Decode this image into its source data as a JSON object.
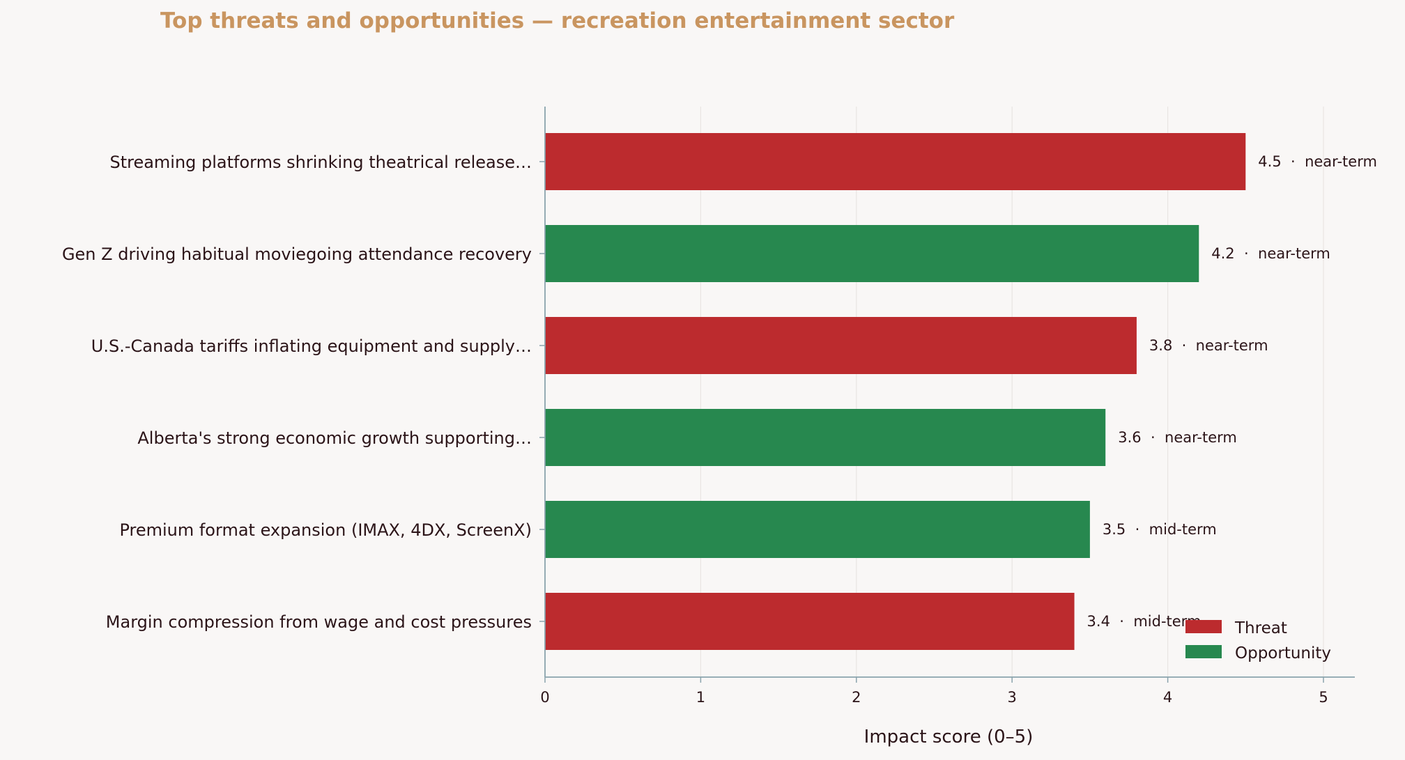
{
  "chart_data": {
    "type": "bar",
    "orientation": "horizontal",
    "title": "Top threats and opportunities — recreation entertainment sector",
    "xlabel": "Impact score (0–5)",
    "ylabel": "",
    "xlim": [
      0,
      5.2
    ],
    "xticks": [
      "0",
      "1",
      "2",
      "3",
      "4",
      "5"
    ],
    "grid": "vertical",
    "legend_position": "bottom-right",
    "categories": [
      "Streaming platforms shrinking theatrical release…",
      "Gen Z driving habitual moviegoing attendance recovery",
      "U.S.-Canada tariffs inflating equipment and supply…",
      "Alberta's strong economic growth supporting…",
      "Premium format expansion (IMAX, 4DX, ScreenX)",
      "Margin compression from wage and cost pressures"
    ],
    "values": [
      4.5,
      4.2,
      3.8,
      3.6,
      3.5,
      3.4
    ],
    "kinds": [
      "Threat",
      "Opportunity",
      "Threat",
      "Opportunity",
      "Opportunity",
      "Threat"
    ],
    "horizons": [
      "near-term",
      "near-term",
      "near-term",
      "near-term",
      "mid-term",
      "mid-term"
    ],
    "value_labels": [
      "4.5  ·  near-term",
      "4.2  ·  near-term",
      "3.8  ·  near-term",
      "3.6  ·  near-term",
      "3.5  ·  mid-term",
      "3.4  ·  mid-term"
    ],
    "legend": [
      {
        "name": "Threat",
        "color": "#bc2b2e"
      },
      {
        "name": "Opportunity",
        "color": "#27884f"
      }
    ],
    "colors": {
      "Threat": "#bc2b2e",
      "Opportunity": "#27884f",
      "title": "#c99560",
      "axis": "#8aa3ad",
      "grid": "#e9e5e3"
    }
  }
}
